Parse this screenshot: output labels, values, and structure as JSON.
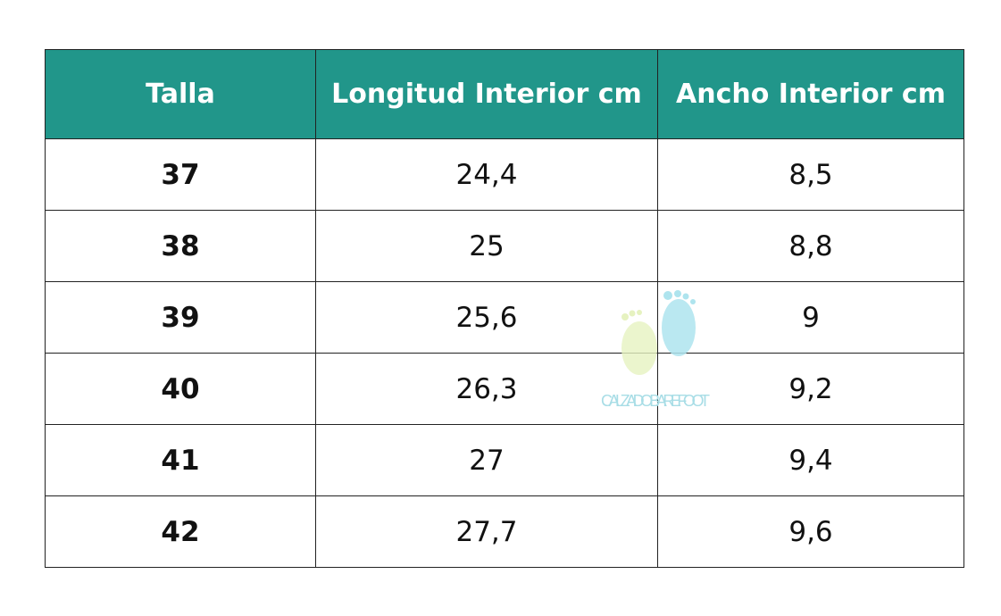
{
  "table": {
    "header": [
      "Talla",
      "Longitud Interior cm",
      "Ancho Interior cm"
    ],
    "rows": [
      [
        "37",
        "24,4",
        "8,5"
      ],
      [
        "38",
        "25",
        "8,8"
      ],
      [
        "39",
        "25,6",
        "9"
      ],
      [
        "40",
        "26,3",
        "9,2"
      ],
      [
        "41",
        "27",
        "9,4"
      ],
      [
        "42",
        "27,7",
        "9,6"
      ]
    ]
  },
  "watermark": "CALZADO BAREFOOT"
}
